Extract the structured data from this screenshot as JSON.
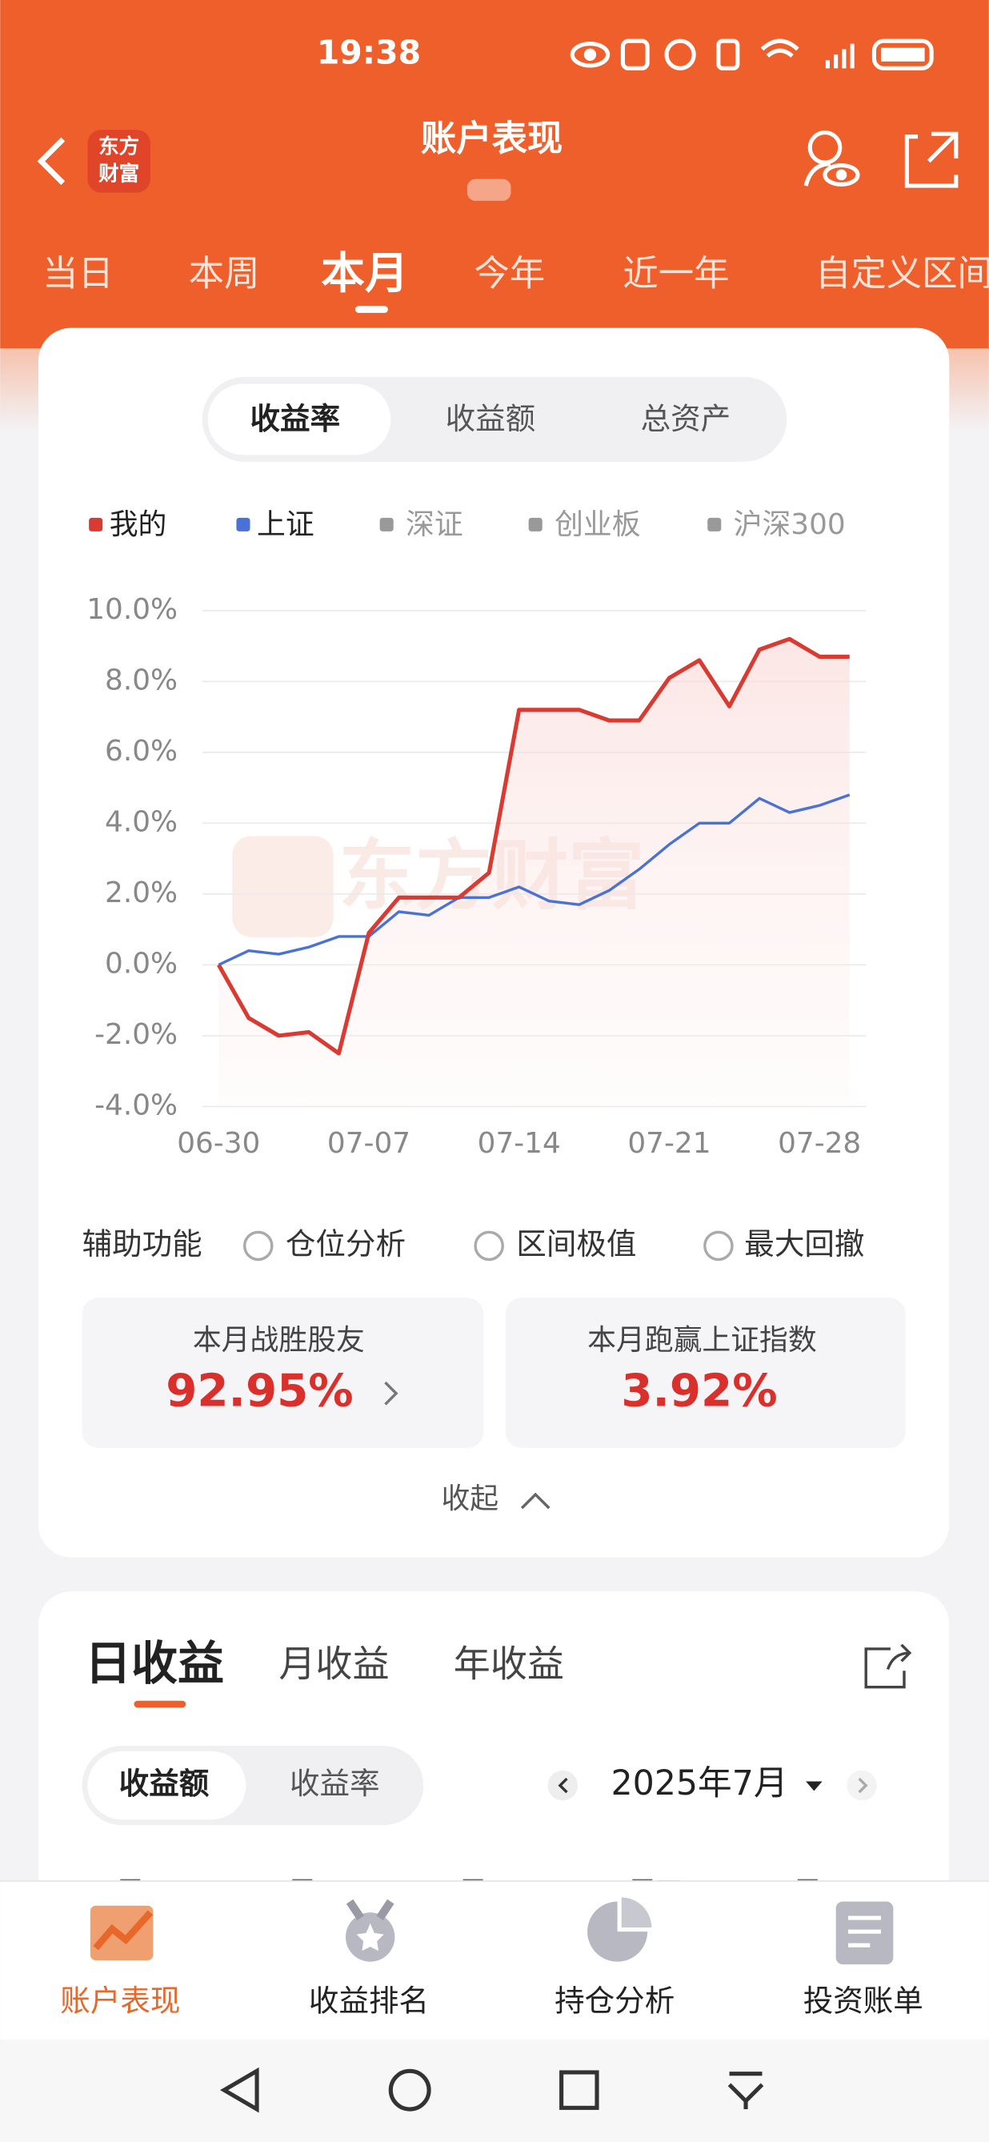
{
  "status_bar": {
    "time": "19:38"
  },
  "header": {
    "title": "账户表现",
    "logo": [
      "东方",
      "财富"
    ]
  },
  "tabs": [
    "当日",
    "本周",
    "本月",
    "今年",
    "近一年",
    "自定义区间"
  ],
  "metric_toggle": [
    "收益率",
    "收益额",
    "总资产"
  ],
  "chart_data": {
    "type": "line",
    "categories": [
      "06-30",
      null,
      null,
      null,
      null,
      "07-07",
      null,
      null,
      null,
      null,
      "07-14",
      null,
      null,
      null,
      null,
      "07-21",
      null,
      null,
      null,
      null,
      "07-28",
      null
    ],
    "series": [
      {
        "name": "我的",
        "color": "#d93a32",
        "values": [
          0,
          -1.5,
          -2.0,
          -1.9,
          -2.5,
          0.9,
          1.9,
          1.9,
          1.9,
          2.6,
          7.2,
          7.2,
          7.2,
          6.9,
          6.9,
          8.1,
          8.6,
          7.3,
          8.9,
          9.2,
          8.7,
          8.7
        ]
      },
      {
        "name": "上证",
        "color": "#4a72d6",
        "values": [
          0,
          0.4,
          0.3,
          0.5,
          0.8,
          0.8,
          1.5,
          1.4,
          1.9,
          1.9,
          2.2,
          1.8,
          1.7,
          2.1,
          2.7,
          3.4,
          4.0,
          4.0,
          4.7,
          4.3,
          4.5,
          4.8
        ]
      }
    ],
    "other_indices": [
      {
        "name": "深证",
        "color": "#999999"
      },
      {
        "name": "创业板",
        "color": "#999999"
      },
      {
        "name": "沪深300",
        "color": "#999999"
      }
    ],
    "ylim": [
      -4,
      10
    ],
    "yticks": [
      {
        "value": -4,
        "label": "-4.0%"
      },
      {
        "value": -2,
        "label": "-2.0%"
      },
      {
        "value": 0,
        "label": "0.0%"
      },
      {
        "value": 2,
        "label": "2.0%"
      },
      {
        "value": 4,
        "label": "4.0%"
      },
      {
        "value": 6,
        "label": "6.0%"
      },
      {
        "value": 8,
        "label": "8.0%"
      },
      {
        "value": 10,
        "label": "10.0%"
      }
    ],
    "grid": true,
    "watermark": "东方财富"
  },
  "assist": {
    "label": "辅助功能",
    "options": [
      "仓位分析",
      "区间极值",
      "最大回撤"
    ]
  },
  "stats": [
    {
      "label": "本月战胜股友",
      "value": "92.95%"
    },
    {
      "label": "本月跑赢上证指数",
      "value": "3.92%"
    }
  ],
  "collapse": "收起",
  "earnings": {
    "tabs": [
      "日收益",
      "月收益",
      "年收益"
    ],
    "toggle": [
      "收益额",
      "收益率"
    ],
    "month": "2025年7月",
    "weekdays": [
      "周一",
      "周二",
      "周三",
      "周四",
      "周五"
    ]
  },
  "bottom_nav": [
    "账户表现",
    "收益排名",
    "持仓分析",
    "投资账单"
  ]
}
